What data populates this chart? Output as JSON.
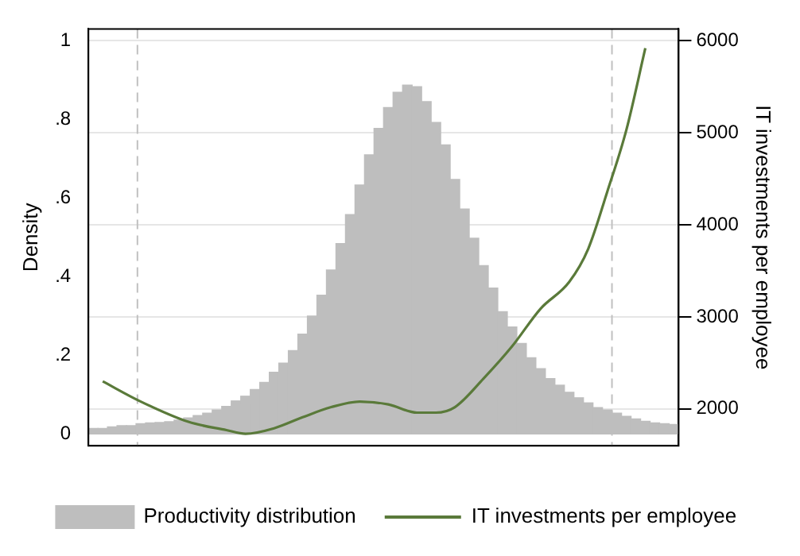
{
  "chart_data": {
    "type": "bar",
    "xlabel": null,
    "ylabel": "Density",
    "y2label": "IT investments per employee",
    "categories": [
      null,
      null,
      null,
      null,
      null,
      null,
      null,
      null,
      null,
      null,
      null,
      null,
      null,
      null,
      null,
      null,
      null,
      null,
      null,
      null,
      null,
      null,
      null,
      null,
      null,
      null,
      null,
      null,
      null,
      null,
      null,
      null,
      null,
      null,
      null,
      null,
      null,
      null,
      null,
      null,
      null,
      null,
      null,
      null,
      null,
      null,
      null,
      null,
      null,
      null,
      null,
      null,
      null,
      null,
      null,
      null,
      null,
      null,
      null,
      null,
      null,
      null
    ],
    "series": [
      {
        "name": "Productivity distribution",
        "color": "#bebebe",
        "values": [
          0.014,
          0.014,
          0.018,
          0.021,
          0.021,
          0.026,
          0.028,
          0.029,
          0.031,
          0.035,
          0.041,
          0.047,
          0.053,
          0.061,
          0.07,
          0.084,
          0.096,
          0.113,
          0.131,
          0.157,
          0.18,
          0.212,
          0.254,
          0.3,
          0.353,
          0.417,
          0.484,
          0.558,
          0.633,
          0.71,
          0.777,
          0.83,
          0.869,
          0.887,
          0.883,
          0.845,
          0.792,
          0.735,
          0.647,
          0.572,
          0.498,
          0.428,
          0.371,
          0.311,
          0.272,
          0.23,
          0.194,
          0.166,
          0.141,
          0.124,
          0.106,
          0.092,
          0.079,
          0.067,
          0.061,
          0.053,
          0.045,
          0.038,
          0.032,
          0.028,
          0.026,
          0.024
        ]
      },
      {
        "name": "IT investments per employee",
        "type": "line",
        "axis": "y2",
        "color": "#5a7a3a",
        "values": [
          null,
          2300,
          null,
          null,
          null,
          2080,
          null,
          null,
          null,
          null,
          1860,
          null,
          null,
          null,
          1770,
          null,
          1730,
          null,
          null,
          1790,
          null,
          null,
          1910,
          null,
          null,
          2020,
          null,
          null,
          2080,
          null,
          null,
          2050,
          null,
          null,
          1960,
          null,
          1960,
          null,
          2020,
          null,
          null,
          2330,
          null,
          null,
          2680,
          null,
          null,
          3090,
          null,
          null,
          3380,
          null,
          3740,
          null,
          4360,
          null,
          5030,
          null,
          5920,
          null,
          null,
          null
        ]
      }
    ],
    "ylim": [
      -0.03,
      1.03
    ],
    "yticks": [
      0,
      {
        "value": 0.2,
        "label": ".2"
      },
      {
        "value": 0.4,
        "label": ".4"
      },
      {
        "value": 0.6,
        "label": ".6"
      },
      {
        "value": 0.8,
        "label": ".8"
      },
      1
    ],
    "y2lim": [
      1600,
      6130
    ],
    "y2ticks": [
      2000,
      3000,
      4000,
      5000,
      6000
    ],
    "grid": "y2",
    "legend": "bottom",
    "marker": "none",
    "line_style": "solid"
  }
}
